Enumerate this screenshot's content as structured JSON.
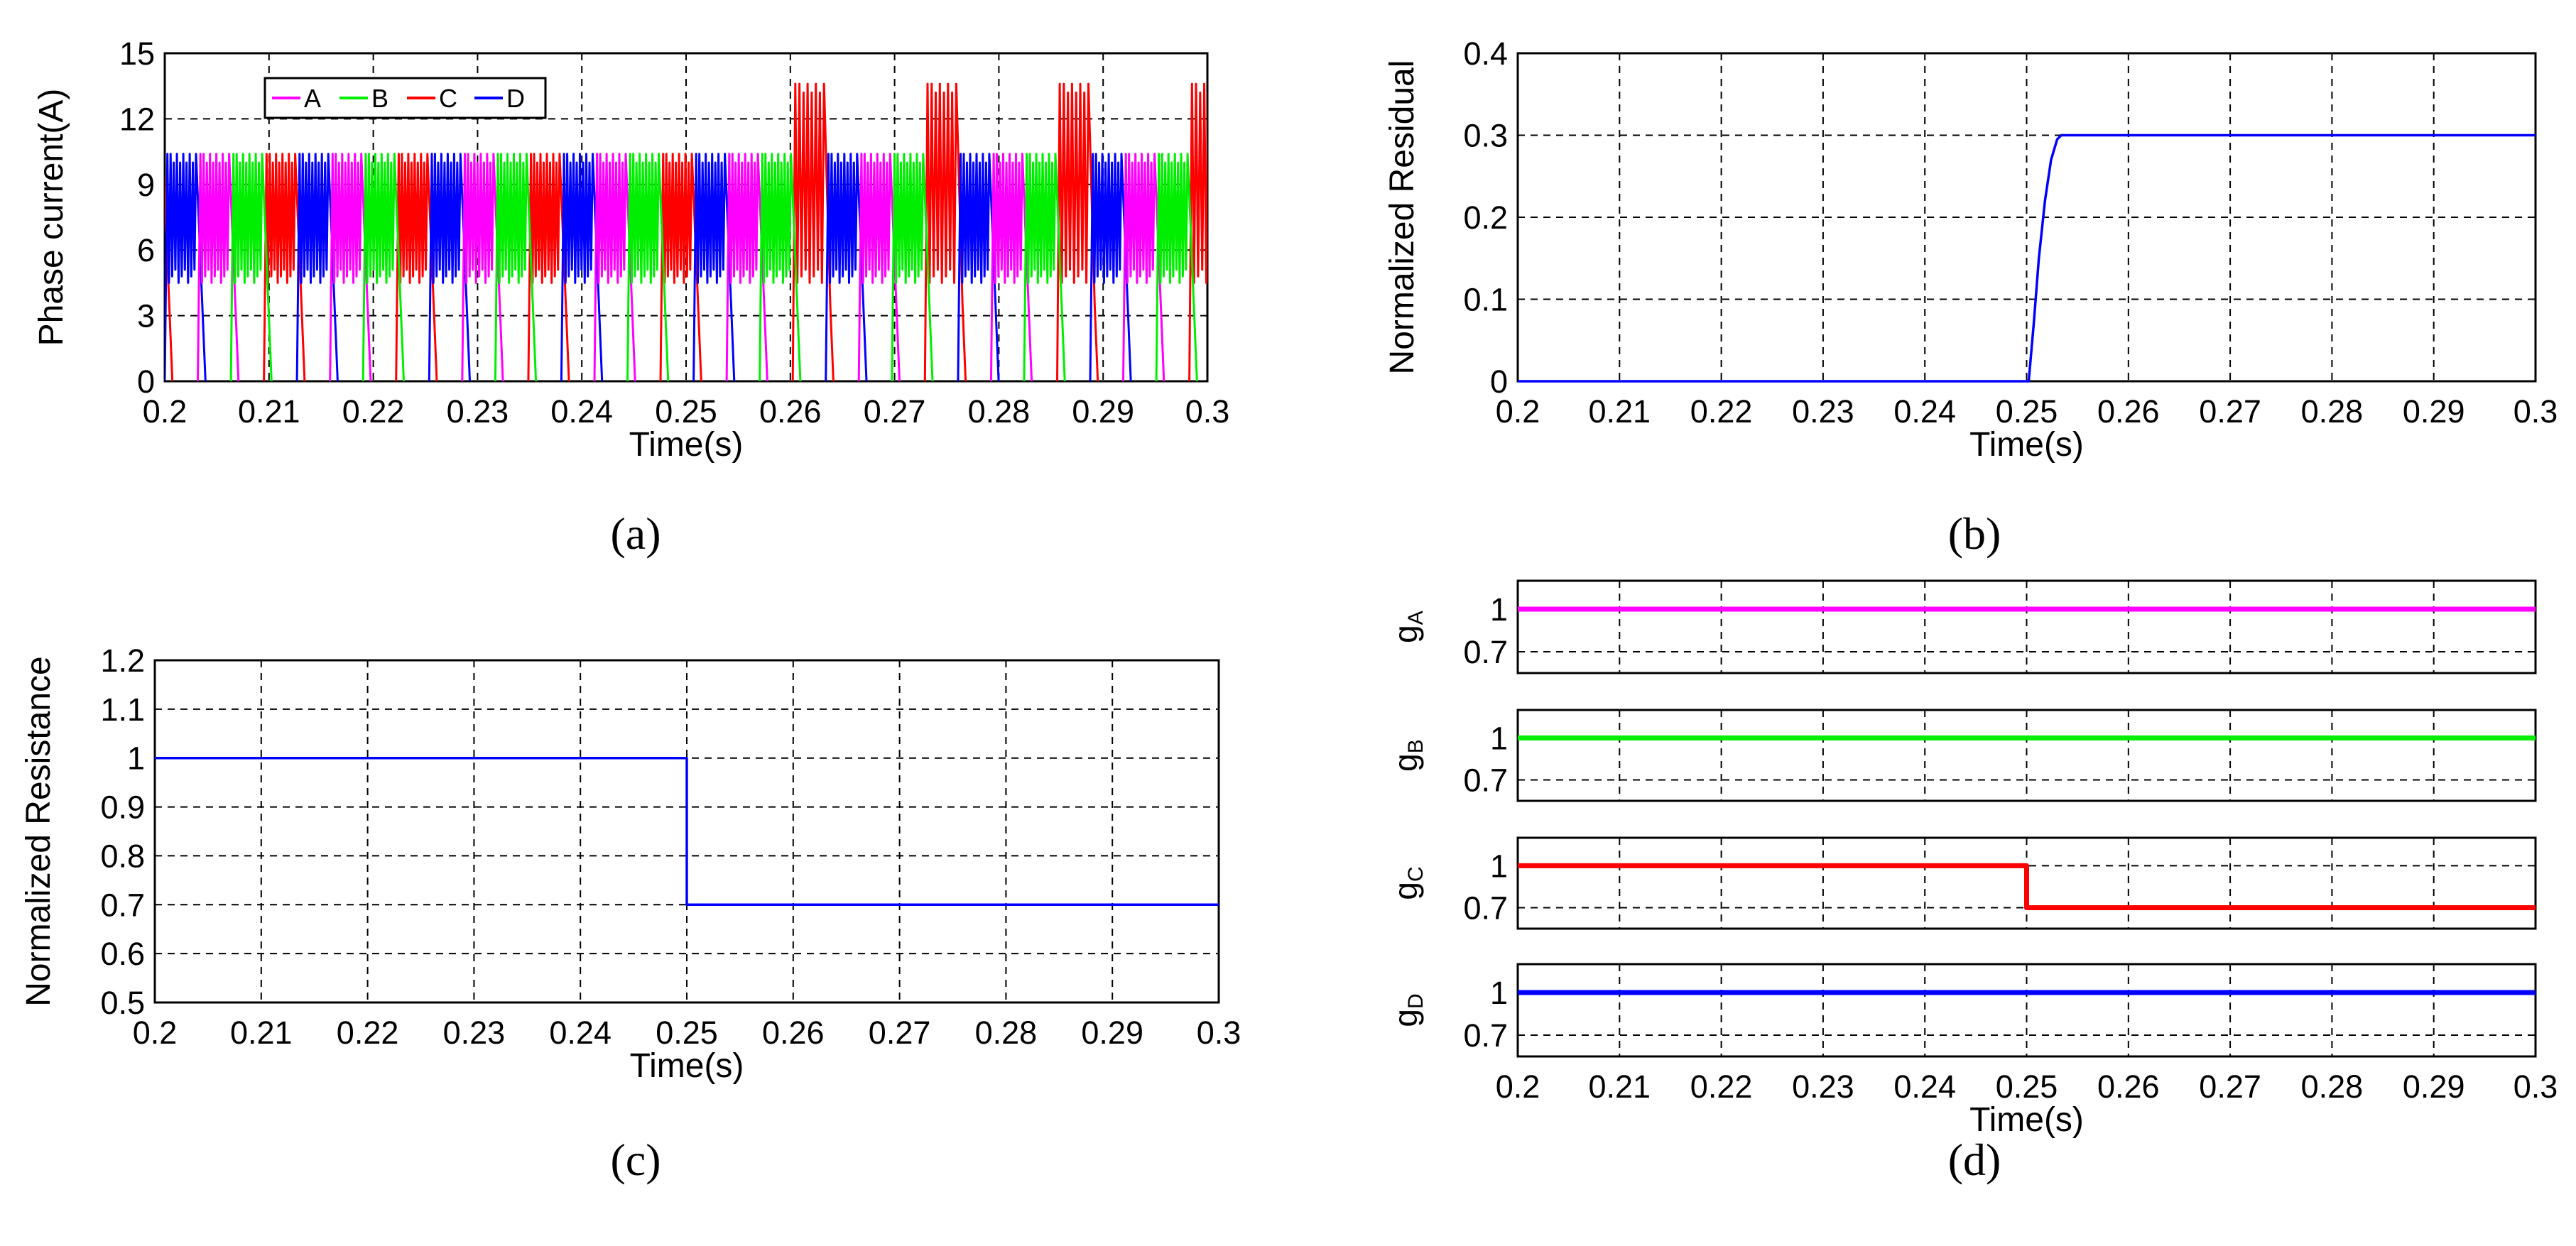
{
  "colors": {
    "A": "#ff00ff",
    "B": "#00ee00",
    "C": "#ff0000",
    "D": "#0000ff",
    "curve": "#0000ff",
    "grid": "#000000"
  },
  "chart_data": [
    {
      "id": "a",
      "panel_label": "(a)",
      "type": "line",
      "xlabel": "Time(s)",
      "ylabel": "Phase current(A)",
      "xlim": [
        0.2,
        0.3
      ],
      "ylim": [
        0,
        15
      ],
      "xticks": [
        "0.2",
        "0.21",
        "0.22",
        "0.23",
        "0.24",
        "0.25",
        "0.26",
        "0.27",
        "0.28",
        "0.29",
        "0.3"
      ],
      "yticks": [
        "0",
        "3",
        "6",
        "9",
        "12",
        "15"
      ],
      "grid": true,
      "legend": {
        "position": "top-left",
        "orientation": "horizontal"
      },
      "phase_order": [
        "C",
        "D",
        "A",
        "B"
      ],
      "first_phase_start": 0.2,
      "phase_period": 0.00317,
      "chop_min": 4.5,
      "chop_max_healthy": 10.4,
      "chop_max_faulty_C": 13.6,
      "fault_time": 0.25,
      "series": [
        {
          "name": "A",
          "color_key": "A",
          "description": "current pulses chopping 4.5–10.4 A"
        },
        {
          "name": "B",
          "color_key": "B",
          "description": "current pulses chopping 4.5–10.4 A"
        },
        {
          "name": "C",
          "color_key": "C",
          "description": "chopping 4.5–10.4 A before fault, peaks ~13.6 A after 0.25 s"
        },
        {
          "name": "D",
          "color_key": "D",
          "description": "current pulses chopping 4.5–10.4 A"
        }
      ]
    },
    {
      "id": "b",
      "panel_label": "(b)",
      "type": "line",
      "xlabel": "Time(s)",
      "ylabel": "Normalized Residual",
      "xlim": [
        0.2,
        0.3
      ],
      "ylim": [
        0,
        0.4
      ],
      "xticks": [
        "0.2",
        "0.21",
        "0.22",
        "0.23",
        "0.24",
        "0.25",
        "0.26",
        "0.27",
        "0.28",
        "0.29",
        "0.3"
      ],
      "yticks": [
        "0",
        "0.1",
        "0.2",
        "0.3",
        "0.4"
      ],
      "grid": true,
      "series": [
        {
          "name": "",
          "color_key": "curve",
          "x": [
            0.2,
            0.2502,
            0.2507,
            0.2512,
            0.2518,
            0.2524,
            0.253,
            0.2534,
            0.3
          ],
          "y": [
            0,
            0,
            0.07,
            0.15,
            0.22,
            0.27,
            0.295,
            0.3,
            0.3
          ]
        }
      ]
    },
    {
      "id": "c",
      "panel_label": "(c)",
      "type": "line",
      "xlabel": "Time(s)",
      "ylabel": "Normalized Resistance",
      "xlim": [
        0.2,
        0.3
      ],
      "ylim": [
        0.5,
        1.2
      ],
      "xticks": [
        "0.2",
        "0.21",
        "0.22",
        "0.23",
        "0.24",
        "0.25",
        "0.26",
        "0.27",
        "0.28",
        "0.29",
        "0.3"
      ],
      "yticks": [
        "0.5",
        "0.6",
        "0.7",
        "0.8",
        "0.9",
        "1",
        "1.1",
        "1.2"
      ],
      "grid": true,
      "series": [
        {
          "name": "",
          "color_key": "curve",
          "x": [
            0.2,
            0.25,
            0.25,
            0.3
          ],
          "y": [
            1,
            1,
            0.7,
            0.7
          ]
        }
      ]
    },
    {
      "id": "d",
      "panel_label": "(d)",
      "type": "line",
      "xlabel": "Time(s)",
      "xlim": [
        0.2,
        0.3
      ],
      "xticks": [
        "0.2",
        "0.21",
        "0.22",
        "0.23",
        "0.24",
        "0.25",
        "0.26",
        "0.27",
        "0.28",
        "0.29",
        "0.3"
      ],
      "grid": true,
      "subplots": [
        {
          "ylabel_main": "g",
          "ylabel_sub": "A",
          "color_key": "A",
          "yticks": [
            "0.7",
            "1"
          ],
          "x": [
            0.2,
            0.3
          ],
          "y": [
            1,
            1
          ]
        },
        {
          "ylabel_main": "g",
          "ylabel_sub": "B",
          "color_key": "B",
          "yticks": [
            "0.7",
            "1"
          ],
          "x": [
            0.2,
            0.3
          ],
          "y": [
            1,
            1
          ]
        },
        {
          "ylabel_main": "g",
          "ylabel_sub": "C",
          "color_key": "C",
          "yticks": [
            "0.7",
            "1"
          ],
          "x": [
            0.2,
            0.25,
            0.25,
            0.3
          ],
          "y": [
            1,
            1,
            0.7,
            0.7
          ]
        },
        {
          "ylabel_main": "g",
          "ylabel_sub": "D",
          "color_key": "D",
          "yticks": [
            "0.7",
            "1"
          ],
          "x": [
            0.2,
            0.3
          ],
          "y": [
            1,
            1
          ]
        }
      ]
    }
  ]
}
